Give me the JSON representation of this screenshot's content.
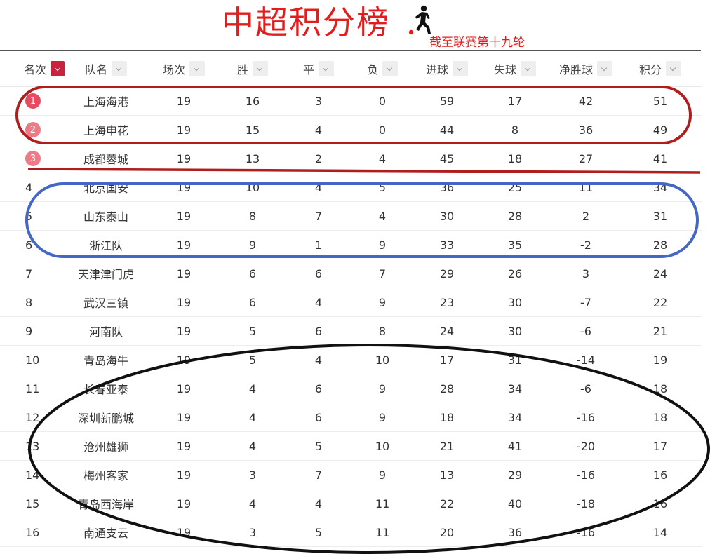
{
  "header": {
    "title": "中超积分榜",
    "subtitle": "截至联赛第十九轮",
    "title_color": "#e41c1c",
    "icon": "soccer-player-icon"
  },
  "columns": {
    "rank": "名次",
    "team": "队名",
    "played": "场次",
    "won": "胜",
    "drawn": "平",
    "lost": "负",
    "goals_for": "进球",
    "goals_against": "失球",
    "goal_diff": "净胜球",
    "points": "积分"
  },
  "active_sort_color": "#c8223e",
  "badge_colors": [
    "#e84a5f",
    "#ef7a87",
    "#ef7a87"
  ],
  "rows": [
    {
      "rank": "1",
      "team": "上海海港",
      "played": "19",
      "won": "16",
      "drawn": "3",
      "lost": "0",
      "goals_for": "59",
      "goals_against": "17",
      "goal_diff": "42",
      "points": "51"
    },
    {
      "rank": "2",
      "team": "上海申花",
      "played": "19",
      "won": "15",
      "drawn": "4",
      "lost": "0",
      "goals_for": "44",
      "goals_against": "8",
      "goal_diff": "36",
      "points": "49"
    },
    {
      "rank": "3",
      "team": "成都蓉城",
      "played": "19",
      "won": "13",
      "drawn": "2",
      "lost": "4",
      "goals_for": "45",
      "goals_against": "18",
      "goal_diff": "27",
      "points": "41"
    },
    {
      "rank": "4",
      "team": "北京国安",
      "played": "19",
      "won": "10",
      "drawn": "4",
      "lost": "5",
      "goals_for": "36",
      "goals_against": "25",
      "goal_diff": "11",
      "points": "34"
    },
    {
      "rank": "5",
      "team": "山东泰山",
      "played": "19",
      "won": "8",
      "drawn": "7",
      "lost": "4",
      "goals_for": "30",
      "goals_against": "28",
      "goal_diff": "2",
      "points": "31"
    },
    {
      "rank": "6",
      "team": "浙江队",
      "played": "19",
      "won": "9",
      "drawn": "1",
      "lost": "9",
      "goals_for": "33",
      "goals_against": "35",
      "goal_diff": "-2",
      "points": "28"
    },
    {
      "rank": "7",
      "team": "天津津门虎",
      "played": "19",
      "won": "6",
      "drawn": "6",
      "lost": "7",
      "goals_for": "29",
      "goals_against": "26",
      "goal_diff": "3",
      "points": "24"
    },
    {
      "rank": "8",
      "team": "武汉三镇",
      "played": "19",
      "won": "6",
      "drawn": "4",
      "lost": "9",
      "goals_for": "23",
      "goals_against": "30",
      "goal_diff": "-7",
      "points": "22"
    },
    {
      "rank": "9",
      "team": "河南队",
      "played": "19",
      "won": "5",
      "drawn": "6",
      "lost": "8",
      "goals_for": "24",
      "goals_against": "30",
      "goal_diff": "-6",
      "points": "21"
    },
    {
      "rank": "10",
      "team": "青岛海牛",
      "played": "19",
      "won": "5",
      "drawn": "4",
      "lost": "10",
      "goals_for": "17",
      "goals_against": "31",
      "goal_diff": "-14",
      "points": "19"
    },
    {
      "rank": "11",
      "team": "长春亚泰",
      "played": "19",
      "won": "4",
      "drawn": "6",
      "lost": "9",
      "goals_for": "28",
      "goals_against": "34",
      "goal_diff": "-6",
      "points": "18"
    },
    {
      "rank": "12",
      "team": "深圳新鹏城",
      "played": "19",
      "won": "4",
      "drawn": "6",
      "lost": "9",
      "goals_for": "18",
      "goals_against": "34",
      "goal_diff": "-16",
      "points": "18"
    },
    {
      "rank": "13",
      "team": "沧州雄狮",
      "played": "19",
      "won": "4",
      "drawn": "5",
      "lost": "10",
      "goals_for": "21",
      "goals_against": "41",
      "goal_diff": "-20",
      "points": "17"
    },
    {
      "rank": "14",
      "team": "梅州客家",
      "played": "19",
      "won": "3",
      "drawn": "7",
      "lost": "9",
      "goals_for": "13",
      "goals_against": "29",
      "goal_diff": "-16",
      "points": "16"
    },
    {
      "rank": "15",
      "team": "青岛西海岸",
      "played": "19",
      "won": "4",
      "drawn": "4",
      "lost": "11",
      "goals_for": "22",
      "goals_against": "40",
      "goal_diff": "-18",
      "points": "16"
    },
    {
      "rank": "16",
      "team": "南通支云",
      "played": "19",
      "won": "3",
      "drawn": "5",
      "lost": "11",
      "goals_for": "20",
      "goals_against": "36",
      "goal_diff": "-16",
      "points": "14"
    }
  ],
  "annotations": {
    "top_two_ellipse_color": "#b01d1d",
    "third_place_line_color": "#b01d1d",
    "mid_ellipse_color": "#4466c4",
    "bottom_ellipse_color": "#111111"
  }
}
